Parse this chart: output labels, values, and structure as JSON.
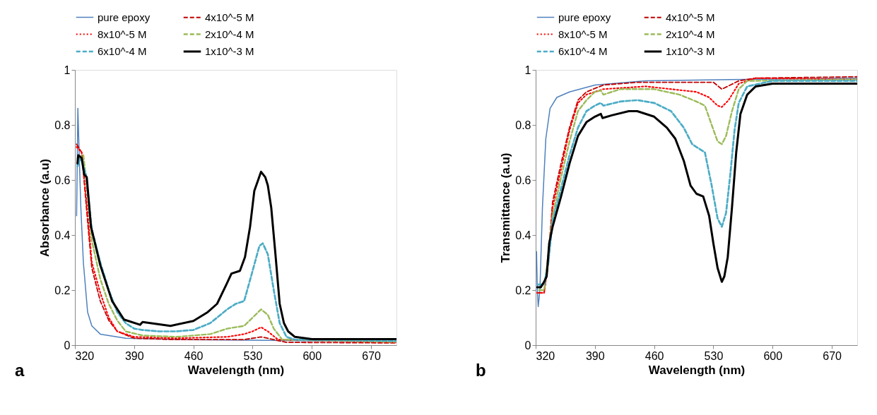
{
  "chart_data": [
    {
      "type": "line",
      "xlabel": "Wavelength (nm)",
      "ylabel": "Absorbance (a.u)",
      "xlim": [
        320,
        700
      ],
      "xticks": [
        320,
        390,
        460,
        530,
        600,
        670
      ],
      "ylim": [
        0,
        1
      ],
      "yticks": [
        0,
        0.2,
        0.4,
        0.6,
        0.8,
        1
      ],
      "grid": false,
      "legend": "top",
      "annotations": [
        "a"
      ],
      "series": [
        {
          "name": "pure epoxy",
          "color": "#4f81bd",
          "line_style": "solid",
          "x": [
            322,
            323.5,
            325,
            327,
            330,
            335,
            340,
            350,
            380,
            450,
            550,
            700
          ],
          "values": [
            0.47,
            0.86,
            0.7,
            0.5,
            0.3,
            0.12,
            0.07,
            0.04,
            0.025,
            0.02,
            0.017,
            0.012
          ]
        },
        {
          "name": "4x10^-5 M",
          "color": "#c00000",
          "line_style": "dashed",
          "x": [
            322,
            328,
            335,
            340,
            350,
            360,
            370,
            390,
            440,
            520,
            540,
            555,
            570,
            700
          ],
          "values": [
            0.73,
            0.7,
            0.45,
            0.28,
            0.16,
            0.09,
            0.05,
            0.025,
            0.02,
            0.02,
            0.03,
            0.02,
            0.01,
            0.008
          ]
        },
        {
          "name": "8x10^-5 M",
          "color": "#ff0000",
          "line_style": "dotted",
          "x": [
            322,
            328,
            335,
            340,
            350,
            360,
            370,
            390,
            440,
            500,
            520,
            530,
            540,
            548,
            560,
            700
          ],
          "values": [
            0.72,
            0.7,
            0.48,
            0.3,
            0.19,
            0.1,
            0.05,
            0.03,
            0.025,
            0.03,
            0.04,
            0.05,
            0.065,
            0.05,
            0.02,
            0.01
          ]
        },
        {
          "name": "2x10^-4 M",
          "color": "#9bbb59",
          "line_style": "dashed",
          "x": [
            323,
            330,
            335,
            340,
            350,
            360,
            370,
            380,
            400,
            440,
            480,
            500,
            520,
            530,
            540,
            548,
            555,
            565,
            700
          ],
          "values": [
            0.68,
            0.69,
            0.55,
            0.38,
            0.24,
            0.15,
            0.09,
            0.05,
            0.035,
            0.03,
            0.04,
            0.06,
            0.07,
            0.1,
            0.13,
            0.11,
            0.06,
            0.02,
            0.012
          ]
        },
        {
          "name": "6x10^-4 M",
          "color": "#4bacc6",
          "line_style": "dashed",
          "x": [
            323,
            327,
            333,
            340,
            350,
            360,
            370,
            380,
            390,
            400,
            420,
            440,
            460,
            480,
            500,
            510,
            520,
            530,
            538,
            542,
            548,
            555,
            562,
            570,
            580,
            700
          ],
          "values": [
            0.65,
            0.68,
            0.62,
            0.42,
            0.3,
            0.2,
            0.12,
            0.08,
            0.06,
            0.055,
            0.05,
            0.05,
            0.055,
            0.08,
            0.13,
            0.15,
            0.16,
            0.27,
            0.36,
            0.37,
            0.33,
            0.2,
            0.08,
            0.03,
            0.02,
            0.015
          ]
        },
        {
          "name": "1x10^-3 M",
          "color": "#000000",
          "line_style": "solid",
          "x": [
            323,
            324,
            328,
            331,
            334,
            339,
            350,
            364,
            378,
            397,
            400,
            433,
            460,
            477,
            488,
            499,
            505,
            515,
            521,
            527,
            532,
            540,
            545,
            548,
            552,
            557,
            562,
            567,
            572,
            580,
            600,
            700
          ],
          "values": [
            0.66,
            0.69,
            0.68,
            0.62,
            0.61,
            0.43,
            0.29,
            0.16,
            0.093,
            0.074,
            0.084,
            0.07,
            0.088,
            0.12,
            0.15,
            0.22,
            0.26,
            0.27,
            0.32,
            0.43,
            0.56,
            0.63,
            0.61,
            0.58,
            0.5,
            0.33,
            0.15,
            0.08,
            0.05,
            0.03,
            0.022,
            0.022
          ]
        }
      ]
    },
    {
      "type": "line",
      "xlabel": "Wavelength (nm)",
      "ylabel": "Transmittance (a.u)",
      "xlim": [
        320,
        700
      ],
      "xticks": [
        320,
        390,
        460,
        530,
        600,
        670
      ],
      "ylim": [
        0,
        1
      ],
      "yticks": [
        0,
        0.2,
        0.4,
        0.6,
        0.8,
        1
      ],
      "grid": false,
      "legend": "top",
      "annotations": [
        "b"
      ],
      "series": [
        {
          "name": "pure epoxy",
          "color": "#4f81bd",
          "line_style": "solid",
          "x": [
            321,
            322,
            323,
            325,
            328,
            332,
            337,
            345,
            360,
            390,
            450,
            550,
            700
          ],
          "values": [
            0.34,
            0.2,
            0.14,
            0.2,
            0.5,
            0.75,
            0.86,
            0.9,
            0.92,
            0.945,
            0.96,
            0.965,
            0.97
          ]
        },
        {
          "name": "4x10^-5 M",
          "color": "#c00000",
          "line_style": "dashed",
          "x": [
            322,
            330,
            335,
            340,
            350,
            360,
            370,
            380,
            400,
            440,
            500,
            530,
            540,
            550,
            560,
            580,
            700
          ],
          "values": [
            0.19,
            0.19,
            0.32,
            0.52,
            0.66,
            0.79,
            0.89,
            0.92,
            0.945,
            0.955,
            0.955,
            0.955,
            0.93,
            0.945,
            0.96,
            0.97,
            0.975
          ]
        },
        {
          "name": "8x10^-5 M",
          "color": "#ff0000",
          "line_style": "dotted",
          "x": [
            322,
            330,
            335,
            340,
            350,
            360,
            370,
            380,
            400,
            450,
            480,
            510,
            525,
            535,
            540,
            548,
            560,
            580,
            700
          ],
          "values": [
            0.19,
            0.19,
            0.3,
            0.5,
            0.64,
            0.78,
            0.88,
            0.91,
            0.93,
            0.94,
            0.93,
            0.92,
            0.9,
            0.87,
            0.865,
            0.89,
            0.95,
            0.97,
            0.965
          ]
        },
        {
          "name": "2x10^-4 M",
          "color": "#9bbb59",
          "line_style": "dashed",
          "x": [
            324,
            330,
            335,
            340,
            350,
            360,
            370,
            380,
            390,
            397,
            400,
            420,
            460,
            490,
            510,
            520,
            528,
            535,
            540,
            545,
            552,
            560,
            570,
            700
          ],
          "values": [
            0.2,
            0.2,
            0.33,
            0.47,
            0.61,
            0.74,
            0.85,
            0.89,
            0.92,
            0.925,
            0.91,
            0.93,
            0.93,
            0.91,
            0.885,
            0.87,
            0.8,
            0.74,
            0.73,
            0.76,
            0.85,
            0.93,
            0.96,
            0.965
          ]
        },
        {
          "name": "6x10^-4 M",
          "color": "#4bacc6",
          "line_style": "dashed",
          "x": [
            323,
            330,
            335,
            340,
            350,
            360,
            370,
            380,
            390,
            397,
            400,
            420,
            440,
            460,
            480,
            495,
            505,
            515,
            520,
            528,
            535,
            540,
            545,
            550,
            555,
            560,
            570,
            600,
            700
          ],
          "values": [
            0.22,
            0.22,
            0.3,
            0.45,
            0.57,
            0.69,
            0.79,
            0.85,
            0.87,
            0.88,
            0.87,
            0.885,
            0.89,
            0.88,
            0.85,
            0.79,
            0.73,
            0.71,
            0.7,
            0.58,
            0.46,
            0.43,
            0.48,
            0.62,
            0.78,
            0.88,
            0.94,
            0.96,
            0.96
          ]
        },
        {
          "name": "1x10^-3 M",
          "color": "#000000",
          "line_style": "solid",
          "x": [
            322,
            326,
            330,
            333,
            336,
            340,
            350,
            360,
            370,
            380,
            390,
            397,
            399,
            410,
            430,
            440,
            460,
            475,
            485,
            495,
            503,
            510,
            518,
            525,
            530,
            535,
            540,
            543,
            547,
            552,
            557,
            562,
            570,
            580,
            600,
            700
          ],
          "values": [
            0.21,
            0.21,
            0.23,
            0.25,
            0.37,
            0.43,
            0.54,
            0.66,
            0.76,
            0.81,
            0.83,
            0.84,
            0.825,
            0.835,
            0.85,
            0.85,
            0.83,
            0.79,
            0.75,
            0.67,
            0.58,
            0.55,
            0.54,
            0.47,
            0.37,
            0.28,
            0.23,
            0.25,
            0.32,
            0.5,
            0.7,
            0.84,
            0.91,
            0.94,
            0.95,
            0.95
          ]
        }
      ]
    }
  ]
}
